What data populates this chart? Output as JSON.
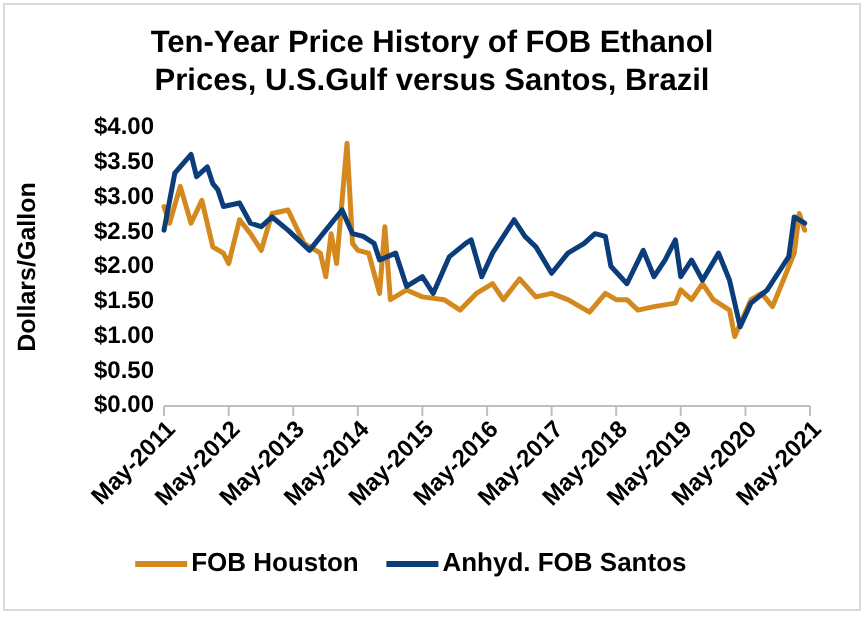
{
  "chart_data": {
    "type": "line",
    "title": "Ten-Year Price History of FOB Ethanol Prices, U.S.Gulf versus Santos, Brazil",
    "ylabel": "Dollars/Gallon",
    "xlim": [
      "2011-05",
      "2021-05"
    ],
    "xticks": [
      {
        "value": "2011-05",
        "label": "May-2011"
      },
      {
        "value": "2012-05",
        "label": "May-2012"
      },
      {
        "value": "2013-05",
        "label": "May-2013"
      },
      {
        "value": "2014-05",
        "label": "May-2014"
      },
      {
        "value": "2015-05",
        "label": "May-2015"
      },
      {
        "value": "2016-05",
        "label": "May-2016"
      },
      {
        "value": "2017-05",
        "label": "May-2017"
      },
      {
        "value": "2018-05",
        "label": "May-2018"
      },
      {
        "value": "2019-05",
        "label": "May-2019"
      },
      {
        "value": "2020-05",
        "label": "May-2020"
      },
      {
        "value": "2021-05",
        "label": "May-2021"
      }
    ],
    "ylim": [
      0,
      4
    ],
    "yticks": [
      {
        "value": 0,
        "label": "$0.00"
      },
      {
        "value": 0.5,
        "label": "$0.50"
      },
      {
        "value": 1,
        "label": "$1.00"
      },
      {
        "value": 1.5,
        "label": "$1.50"
      },
      {
        "value": 2,
        "label": "$2.00"
      },
      {
        "value": 2.5,
        "label": "$2.50"
      },
      {
        "value": 3,
        "label": "$3.00"
      },
      {
        "value": 3.5,
        "label": "$3.50"
      },
      {
        "value": 4,
        "label": "$4.00"
      }
    ],
    "grid": false,
    "legend": "bottom",
    "line_style": "solid",
    "series": [
      {
        "name": "FOB Houston",
        "color": "#d4891f",
        "x": [
          "2011-05",
          "2011-06",
          "2011-08",
          "2011-10",
          "2011-12",
          "2012-02",
          "2012-04",
          "2012-05",
          "2012-07",
          "2012-09",
          "2012-11",
          "2013-01",
          "2013-04",
          "2013-07",
          "2013-10",
          "2013-11",
          "2013-12",
          "2014-01",
          "2014-03",
          "2014-04",
          "2014-05",
          "2014-07",
          "2014-09",
          "2014-10",
          "2014-11",
          "2015-02",
          "2015-05",
          "2015-09",
          "2015-12",
          "2016-03",
          "2016-06",
          "2016-08",
          "2016-11",
          "2017-02",
          "2017-05",
          "2017-08",
          "2017-12",
          "2018-03",
          "2018-05",
          "2018-07",
          "2018-09",
          "2018-12",
          "2019-04",
          "2019-05",
          "2019-07",
          "2019-09",
          "2019-11",
          "2020-02",
          "2020-03",
          "2020-06",
          "2020-08",
          "2020-10",
          "2020-12",
          "2021-02",
          "2021-03",
          "2021-04"
        ],
        "values": [
          2.87,
          2.63,
          3.16,
          2.63,
          2.96,
          2.29,
          2.2,
          2.05,
          2.68,
          2.48,
          2.24,
          2.77,
          2.82,
          2.34,
          2.2,
          1.86,
          2.48,
          2.05,
          3.78,
          2.34,
          2.24,
          2.2,
          1.62,
          2.58,
          1.53,
          1.67,
          1.57,
          1.53,
          1.38,
          1.62,
          1.76,
          1.53,
          1.83,
          1.57,
          1.62,
          1.53,
          1.35,
          1.62,
          1.53,
          1.53,
          1.38,
          1.43,
          1.48,
          1.67,
          1.53,
          1.76,
          1.53,
          1.38,
          1.0,
          1.53,
          1.62,
          1.43,
          1.81,
          2.2,
          2.77,
          2.53
        ]
      },
      {
        "name": "Anhyd. FOB Santos",
        "color": "#0a3d7a",
        "x": [
          "2011-05",
          "2011-07",
          "2011-10",
          "2011-11",
          "2012-01",
          "2012-02",
          "2012-03",
          "2012-04",
          "2012-07",
          "2012-09",
          "2012-11",
          "2013-01",
          "2013-04",
          "2013-08",
          "2013-11",
          "2014-02",
          "2014-04",
          "2014-06",
          "2014-08",
          "2014-09",
          "2014-12",
          "2015-02",
          "2015-05",
          "2015-07",
          "2015-10",
          "2016-01",
          "2016-02",
          "2016-04",
          "2016-06",
          "2016-08",
          "2016-10",
          "2016-12",
          "2017-02",
          "2017-05",
          "2017-08",
          "2017-11",
          "2018-01",
          "2018-03",
          "2018-04",
          "2018-07",
          "2018-10",
          "2018-12",
          "2019-02",
          "2019-04",
          "2019-05",
          "2019-07",
          "2019-09",
          "2019-12",
          "2020-02",
          "2020-04",
          "2020-06",
          "2020-09",
          "2020-11",
          "2021-01",
          "2021-02",
          "2021-04"
        ],
        "values": [
          2.53,
          3.35,
          3.62,
          3.3,
          3.44,
          3.2,
          3.11,
          2.87,
          2.92,
          2.63,
          2.58,
          2.72,
          2.53,
          2.24,
          2.53,
          2.82,
          2.48,
          2.44,
          2.34,
          2.1,
          2.2,
          1.72,
          1.86,
          1.62,
          2.15,
          2.34,
          2.39,
          1.86,
          2.2,
          2.44,
          2.68,
          2.44,
          2.29,
          1.91,
          2.2,
          2.34,
          2.48,
          2.44,
          2.01,
          1.76,
          2.24,
          1.86,
          2.1,
          2.39,
          1.86,
          2.1,
          1.81,
          2.2,
          1.81,
          1.14,
          1.48,
          1.67,
          1.91,
          2.15,
          2.72,
          2.63
        ]
      }
    ]
  }
}
